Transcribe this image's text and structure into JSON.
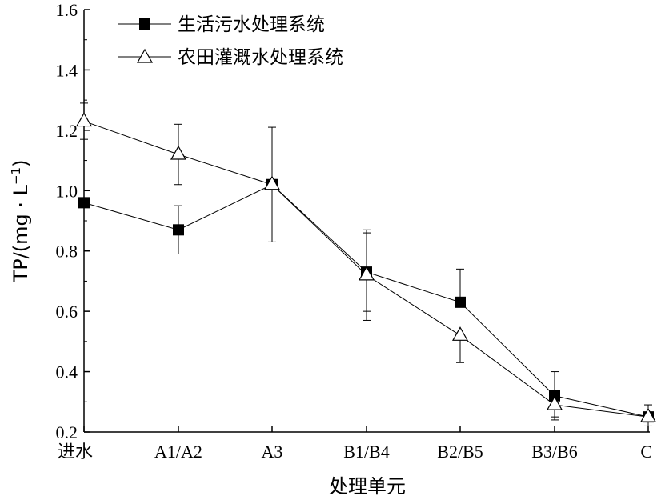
{
  "chart_data": {
    "type": "line",
    "categories": [
      "进水",
      "A1/A2",
      "A3",
      "B1/B4",
      "B2/B5",
      "B3/B6",
      "C"
    ],
    "ylim": [
      0.2,
      1.6
    ],
    "yticks": [
      "0.2",
      "0.4",
      "0.6",
      "0.8",
      "1.0",
      "1.2",
      "1.4",
      "1.6"
    ],
    "xlabel": "处理单元",
    "ylabel": "TP/(mg · L",
    "ylabel_sup": "−1",
    "ylabel_end": ")",
    "grid": false,
    "legend": "top-left",
    "series": [
      {
        "name": "生活污水处理系统",
        "marker": "filled-square",
        "values": [
          0.96,
          0.87,
          1.02,
          0.73,
          0.63,
          0.32,
          0.25
        ],
        "err_low": [
          null,
          0.79,
          0.83,
          0.6,
          null,
          0.25,
          null
        ],
        "err_high": [
          null,
          0.95,
          1.21,
          0.87,
          0.74,
          0.4,
          null
        ]
      },
      {
        "name": "农田灌溉水处理系统",
        "marker": "open-triangle",
        "values": [
          1.23,
          1.12,
          1.02,
          0.72,
          0.52,
          0.29,
          0.25
        ],
        "err_low": [
          1.17,
          1.02,
          null,
          0.57,
          0.43,
          0.24,
          0.22
        ],
        "err_high": [
          1.29,
          1.22,
          null,
          0.86,
          null,
          null,
          0.29
        ]
      }
    ]
  }
}
